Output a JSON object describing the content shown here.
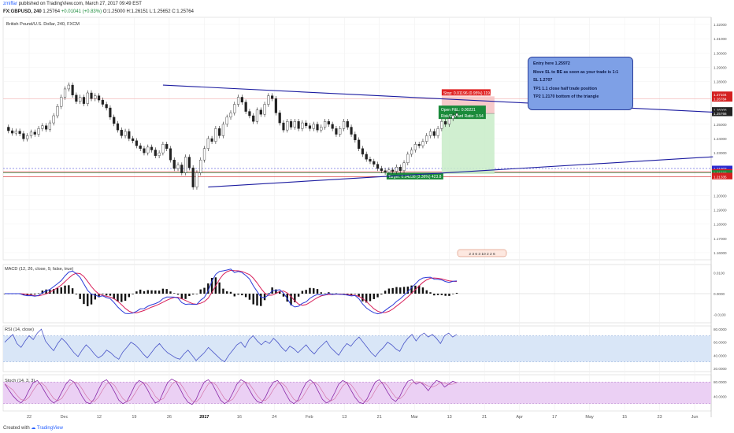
{
  "header": {
    "author": "zmiffar",
    "published": "published on TradingView.com, March 27, 2017 09:49 EST",
    "symbol": "FX:GBPUSD, 240",
    "last": "1.25764",
    "change": "+0.01041 (+0.83%)",
    "open": "O:1.25000",
    "high": "H:1.26151",
    "low": "L:1.25652",
    "close": "C:1.25764"
  },
  "footer": {
    "created_with": "Created with",
    "brand": "TradingView"
  },
  "info_box": {
    "lines": [
      "Entry here 1.25972",
      "Move SL to BE as soon as your trade is 1:1",
      "SL 1.2707",
      "TP1 1.1 close half trade position",
      "TP2 1.2170 bottom of the triangle"
    ]
  },
  "colors": {
    "price": "#222222",
    "trendline": "#1c1ca0",
    "stop_zone": "#f6c1c1",
    "target_zone": "#c8ecc8",
    "macd_line": "#2a3ad8",
    "signal_line": "#d8205a",
    "rsi_line": "#4a55c8",
    "rsi_band": "#d9e6f7",
    "stoch_line": "#8a2aa8",
    "stoch_band": "#ebd0f4"
  },
  "chart_data": [
    {
      "type": "line",
      "name": "price",
      "title": "British Pound/U.S. Dollar, 240, FXCM",
      "x_ticks": [
        "22",
        "Dec",
        "12",
        "19",
        "26",
        "2017",
        "16",
        "24",
        "Feb",
        "13",
        "21",
        "Mar",
        "13",
        "21",
        "Apr",
        "17",
        "May",
        "15",
        "23",
        "Jun"
      ],
      "y_ticks": [
        "1.32000",
        "1.31000",
        "1.30000",
        "1.29000",
        "1.28000",
        "1.25000",
        "1.24000",
        "1.23000",
        "1.20000",
        "1.19000",
        "1.18000",
        "1.17000",
        "1.16000"
      ],
      "ylim": [
        1.155,
        1.325
      ],
      "key_levels": [
        1.27104,
        1.26784,
        1.26008,
        1.25766,
        1.21903,
        1.2167,
        1.21588,
        1.21423,
        1.21412,
        1.21335
      ],
      "series": [
        {
          "values": [
            1.248,
            1.2455,
            1.2438,
            1.2452,
            1.2435,
            1.2398,
            1.242,
            1.2445,
            1.243,
            1.247,
            1.249,
            1.2465,
            1.251,
            1.256,
            1.2625,
            1.269,
            1.2748,
            1.2775,
            1.2705,
            1.266,
            1.269,
            1.2645,
            1.272,
            1.268,
            1.27,
            1.267,
            1.264,
            1.2615,
            1.255,
            1.2505,
            1.246,
            1.242,
            1.245,
            1.24,
            1.2385,
            1.235,
            1.233,
            1.23,
            1.234,
            1.232,
            1.228,
            1.23,
            1.236,
            1.233,
            1.225,
            1.219,
            1.2215,
            1.216,
            1.227,
            1.2195,
            1.206,
            1.216,
            1.225,
            1.233,
            1.24,
            1.238,
            1.247,
            1.242,
            1.25,
            1.255,
            1.258,
            1.264,
            1.269,
            1.2655,
            1.259,
            1.256,
            1.252,
            1.26,
            1.257,
            1.264,
            1.27,
            1.268,
            1.258,
            1.251,
            1.246,
            1.252,
            1.248,
            1.252,
            1.247,
            1.251,
            1.249,
            1.247,
            1.25,
            1.246,
            1.248,
            1.252,
            1.25,
            1.247,
            1.243,
            1.247,
            1.252,
            1.248,
            1.243,
            1.239,
            1.233,
            1.229,
            1.2255,
            1.224,
            1.222,
            1.219,
            1.2175,
            1.2165,
            1.218,
            1.217,
            1.22,
            1.2175,
            1.223,
            1.229,
            1.232,
            1.236,
            1.235,
            1.238,
            1.242,
            1.245,
            1.242,
            1.247,
            1.252,
            1.25,
            1.254,
            1.256,
            1.2576
          ]
        }
      ],
      "trendlines": [
        {
          "from": [
            42,
            1.2775
          ],
          "to": [
            188,
            1.2585
          ]
        },
        {
          "from": [
            54,
            1.206
          ],
          "to": [
            188,
            1.2272
          ]
        }
      ],
      "position": {
        "stop_label": "Stop: 0.01196 (0.95%) 119.6",
        "pnl_label": "Open P&L: 0.00221",
        "ratio_label": "Risk/Reward Ratio: 3.54",
        "target_label": "Target: 0.04238 (3.36%) 423.8",
        "entry": 1.2576,
        "stop": 1.2696,
        "target": 1.2152,
        "span": [
          116,
          130
        ]
      },
      "events_label": "2 3 6 3 10 2 2 6"
    },
    {
      "type": "line",
      "name": "MACD",
      "title": "MACD (12, 26, close, 9, false, true)",
      "y_ticks": [
        "0.0100",
        "0.0000",
        "-0.0100"
      ],
      "ylim": [
        -0.014,
        0.014
      ]
    },
    {
      "type": "line",
      "name": "RSI",
      "title": "RSI (14, close)",
      "y_ticks": [
        "80.0000",
        "60.0000",
        "40.0000",
        "20.0000"
      ],
      "ylim": [
        15,
        85
      ],
      "band": [
        30,
        70
      ],
      "values": [
        60,
        66,
        72,
        58,
        52,
        62,
        70,
        64,
        74,
        80,
        62,
        54,
        47,
        58,
        66,
        60,
        52,
        44,
        38,
        48,
        56,
        50,
        42,
        36,
        40,
        48,
        44,
        38,
        34,
        45,
        52,
        60,
        56,
        50,
        42,
        36,
        44,
        52,
        58,
        50,
        44,
        40,
        36,
        34,
        42,
        48,
        40,
        32,
        38,
        44,
        52,
        46,
        40,
        34,
        30,
        40,
        48,
        56,
        60,
        52,
        64,
        70,
        62,
        56,
        62,
        58,
        66,
        60,
        52,
        46,
        54,
        50,
        44,
        50,
        56,
        48,
        42,
        50,
        56,
        62,
        52,
        46,
        40,
        50,
        58,
        54,
        62,
        68,
        60,
        52,
        44,
        38,
        46,
        52,
        60,
        56,
        50,
        46,
        58,
        66,
        72,
        62,
        70,
        74,
        68,
        72,
        66,
        58,
        70,
        74,
        68,
        72
      ]
    },
    {
      "type": "line",
      "name": "Stoch",
      "title": "Stoch (14, 3, 3)",
      "y_ticks": [
        "80.0000",
        "40.0000"
      ],
      "ylim": [
        0,
        100
      ],
      "band": [
        20,
        80
      ],
      "values": [
        75,
        58,
        42,
        30,
        22,
        35,
        58,
        78,
        84,
        70,
        50,
        32,
        22,
        30,
        52,
        74,
        86,
        80,
        62,
        40,
        24,
        20,
        34,
        58,
        80,
        86,
        72,
        52,
        30,
        20,
        26,
        48,
        72,
        84,
        78,
        60,
        38,
        22,
        28,
        54,
        78,
        88,
        82,
        62,
        40,
        24,
        18,
        32,
        58,
        80,
        86,
        74,
        52,
        30,
        20,
        28,
        50,
        74,
        86,
        80,
        60,
        40,
        26,
        22,
        38,
        62,
        80,
        84,
        70,
        48,
        28,
        20,
        30,
        56,
        78,
        86,
        76,
        54,
        32,
        22,
        28,
        50,
        74,
        84,
        78,
        58,
        38,
        24,
        20,
        34,
        58,
        80,
        86,
        72,
        52,
        34,
        26,
        40,
        64,
        82,
        86,
        74,
        80,
        70,
        56,
        72,
        84,
        80,
        66,
        74,
        82,
        78
      ]
    }
  ]
}
